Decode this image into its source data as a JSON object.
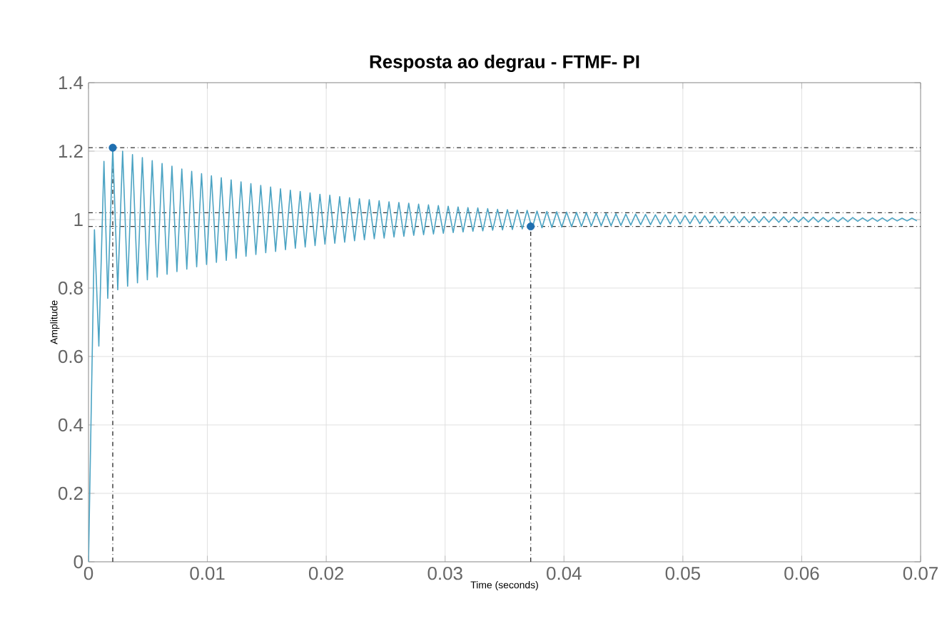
{
  "chart_data": {
    "type": "line",
    "title": "Resposta ao degrau - FTMF- PI",
    "xlabel": "Time (seconds)",
    "ylabel": "Amplitude",
    "xlim": [
      0,
      0.07
    ],
    "ylim": [
      0,
      1.4
    ],
    "xticks": [
      0,
      0.01,
      0.02,
      0.03,
      0.04,
      0.05,
      0.06,
      0.07
    ],
    "yticks": [
      0,
      0.2,
      0.4,
      0.6,
      0.8,
      1,
      1.2,
      1.4
    ],
    "grid": true,
    "ref_lines": [
      {
        "axis": "y",
        "value": 1.02,
        "color": "#333333",
        "line_style": "dashdot"
      },
      {
        "axis": "y",
        "value": 0.98,
        "color": "#333333",
        "line_style": "dashdot"
      },
      {
        "axis": "x",
        "value": 0.00204,
        "color": "#333333",
        "line_style": "dashdot"
      },
      {
        "axis": "y",
        "value": 1.21,
        "color": "#333333",
        "line_style": "dashdot"
      },
      {
        "axis": "x",
        "value": 0.0372,
        "color": "#333333",
        "line_style": "dashdot"
      }
    ],
    "series": [
      {
        "type": "line",
        "color": "#4ba3c3",
        "line_style": "solid",
        "x": [
          0,
          0.0005,
          0.00087,
          0.0013,
          0.00162,
          0.00204,
          0.00246,
          0.00287,
          0.00329,
          0.0037,
          0.00412,
          0.00453,
          0.00495,
          0.00536,
          0.00578,
          0.00619,
          0.00661,
          0.00702,
          0.00744,
          0.00785,
          0.00827,
          0.00868,
          0.0091,
          0.00951,
          0.00993,
          0.01034,
          0.01076,
          0.01117,
          0.01159,
          0.012,
          0.01242,
          0.01283,
          0.01325,
          0.01366,
          0.01408,
          0.01449,
          0.01491,
          0.01532,
          0.01574,
          0.01615,
          0.01657,
          0.01698,
          0.0174,
          0.01781,
          0.01823,
          0.01864,
          0.01906,
          0.01947,
          0.01989,
          0.0203,
          0.02072,
          0.02113,
          0.02155,
          0.02196,
          0.02238,
          0.02279,
          0.02321,
          0.02362,
          0.02404,
          0.02445,
          0.02487,
          0.02528,
          0.0257,
          0.02611,
          0.02653,
          0.02694,
          0.02736,
          0.02777,
          0.02819,
          0.0286,
          0.02902,
          0.02943,
          0.02985,
          0.03026,
          0.03068,
          0.03109,
          0.03151,
          0.03192,
          0.03234,
          0.03275,
          0.03317,
          0.03358,
          0.034,
          0.03441,
          0.03483,
          0.03524,
          0.03566,
          0.03607,
          0.03649,
          0.0369,
          0.03732,
          0.03773,
          0.03815,
          0.03856,
          0.03898,
          0.03939,
          0.03981,
          0.04022,
          0.04064,
          0.04105,
          0.04147,
          0.04188,
          0.0423,
          0.04271,
          0.04313,
          0.04354,
          0.04396,
          0.04437,
          0.04479,
          0.0452,
          0.04562,
          0.04603,
          0.04645,
          0.04686,
          0.04728,
          0.04769,
          0.04811,
          0.04852,
          0.04894,
          0.04935,
          0.04977,
          0.05018,
          0.0506,
          0.05101,
          0.05143,
          0.05184,
          0.05226,
          0.05267,
          0.05309,
          0.0535,
          0.05392,
          0.05433,
          0.05475,
          0.05516,
          0.05558,
          0.05599,
          0.05641,
          0.05682,
          0.05724,
          0.05765,
          0.05807,
          0.05848,
          0.0589,
          0.05931,
          0.05973,
          0.06014,
          0.06056,
          0.06097,
          0.06139,
          0.0618,
          0.06222,
          0.06263,
          0.06305,
          0.06346,
          0.06388,
          0.06429,
          0.06471,
          0.06512,
          0.06554,
          0.06595,
          0.06637,
          0.06678,
          0.0672,
          0.06761,
          0.06803,
          0.06844,
          0.06886,
          0.06927,
          0.06969
        ],
        "values": [
          0,
          0.97,
          0.63,
          1.17,
          0.77,
          1.21,
          0.795,
          1.2,
          0.805,
          1.19,
          0.815,
          1.181,
          0.824,
          1.172,
          0.832,
          1.164,
          0.84,
          1.156,
          0.848,
          1.148,
          0.855,
          1.141,
          0.862,
          1.134,
          0.869,
          1.128,
          0.875,
          1.122,
          0.881,
          1.116,
          0.887,
          1.11,
          0.893,
          1.105,
          0.898,
          1.1,
          0.903,
          1.095,
          0.907,
          1.09,
          0.912,
          1.086,
          0.916,
          1.082,
          0.92,
          1.078,
          0.924,
          1.074,
          0.928,
          1.071,
          0.931,
          1.067,
          0.934,
          1.064,
          0.938,
          1.061,
          0.941,
          1.058,
          0.944,
          1.055,
          0.946,
          1.052,
          0.949,
          1.05,
          0.951,
          1.048,
          0.954,
          1.045,
          0.956,
          1.043,
          0.958,
          1.041,
          0.96,
          1.039,
          0.962,
          1.037,
          0.964,
          1.035,
          0.966,
          1.034,
          0.967,
          1.032,
          0.969,
          1.03,
          0.97,
          1.029,
          0.971,
          1.028,
          0.973,
          1.027,
          0.974,
          1.025,
          0.976,
          1.024,
          0.977,
          1.023,
          0.978,
          1.022,
          0.979,
          1.021,
          0.98,
          1.02,
          0.981,
          1.019,
          0.982,
          1.018,
          0.982,
          1.017,
          0.983,
          1.016,
          0.984,
          1.016,
          0.985,
          1.015,
          0.985,
          1.014,
          0.986,
          1.014,
          0.987,
          1.013,
          0.987,
          1.012,
          0.988,
          1.012,
          0.988,
          1.011,
          0.989,
          1.011,
          0.989,
          1.01,
          0.99,
          1.01,
          0.99,
          1.009,
          0.991,
          1.009,
          0.991,
          1.009,
          0.992,
          1.008,
          0.992,
          1.008,
          0.992,
          1.007,
          0.993,
          1.007,
          0.993,
          1.007,
          0.993,
          1.006,
          0.994,
          1.006,
          0.994,
          1.006,
          0.994,
          1.006,
          0.995,
          1.005,
          0.995,
          1.005,
          0.995,
          1.005,
          0.995,
          1.005,
          0.996,
          1.004,
          0.996,
          1.004,
          0.996
        ]
      },
      {
        "type": "scatter",
        "color": "#1f6fb0",
        "x": [
          0.00204,
          0.0372
        ],
        "values": [
          1.21,
          0.98
        ]
      }
    ]
  }
}
